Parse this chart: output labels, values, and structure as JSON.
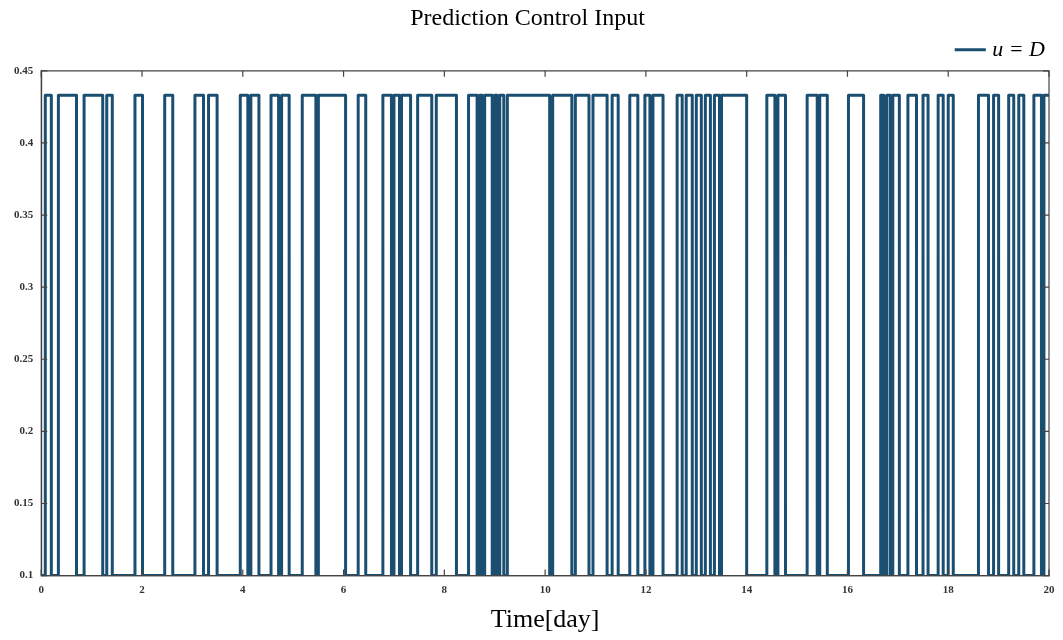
{
  "chart_data": {
    "type": "step",
    "title": "Prediction Control Input",
    "xlabel": "Time[day]",
    "xlim": [
      0,
      20
    ],
    "xticks": [
      0,
      2,
      4,
      6,
      8,
      10,
      12,
      14,
      16,
      18,
      20
    ],
    "ylim": [
      0.1,
      0.45
    ],
    "yticks": [
      0.1,
      0.15,
      0.2,
      0.25,
      0.3,
      0.35,
      0.4,
      0.45
    ],
    "grid": false,
    "legend": "top right",
    "line_style": "solid",
    "marker": "none",
    "series": [
      {
        "name": "u = D",
        "color": "#1b4f72",
        "x": [
          0,
          0.08,
          0.2,
          0.34,
          0.7,
          0.85,
          1.22,
          1.3,
          1.41,
          1.86,
          2.01,
          2.45,
          2.61,
          3.05,
          3.22,
          3.32,
          3.49,
          3.95,
          4.1,
          4.16,
          4.32,
          4.56,
          4.71,
          4.77,
          4.92,
          5.18,
          5.45,
          5.5,
          6.04,
          6.29,
          6.44,
          6.78,
          6.95,
          7.0,
          7.11,
          7.15,
          7.33,
          7.47,
          7.75,
          7.84,
          8.24,
          8.48,
          8.65,
          8.7,
          8.75,
          8.8,
          8.95,
          9.0,
          9.05,
          9.1,
          9.18,
          9.25,
          10.09,
          10.15,
          10.53,
          10.6,
          10.87,
          10.95,
          11.23,
          11.33,
          11.45,
          11.68,
          11.84,
          11.98,
          12.08,
          12.14,
          12.34,
          12.62,
          12.72,
          12.8,
          12.92,
          13.0,
          13.1,
          13.18,
          13.28,
          13.36,
          13.46,
          13.5,
          14.0,
          14.4,
          14.56,
          14.62,
          14.77,
          15.2,
          15.4,
          15.45,
          15.6,
          16.02,
          16.32,
          16.66,
          16.72,
          16.78,
          16.85,
          16.9,
          17.03,
          17.2,
          17.37,
          17.5,
          17.6,
          17.8,
          17.9,
          18.0,
          18.1,
          18.6,
          18.8,
          18.9,
          19.0,
          19.2,
          19.3,
          19.4,
          19.5,
          19.7,
          19.85,
          19.9,
          20
        ],
        "values": [
          0.1,
          0.433,
          0.1,
          0.433,
          0.1,
          0.433,
          0.1,
          0.433,
          0.1,
          0.433,
          0.1,
          0.433,
          0.1,
          0.433,
          0.1,
          0.433,
          0.1,
          0.433,
          0.1,
          0.433,
          0.1,
          0.433,
          0.1,
          0.433,
          0.1,
          0.433,
          0.1,
          0.433,
          0.1,
          0.433,
          0.1,
          0.433,
          0.1,
          0.433,
          0.1,
          0.433,
          0.1,
          0.433,
          0.1,
          0.433,
          0.1,
          0.433,
          0.1,
          0.433,
          0.1,
          0.433,
          0.1,
          0.433,
          0.1,
          0.433,
          0.1,
          0.433,
          0.1,
          0.433,
          0.1,
          0.433,
          0.1,
          0.433,
          0.1,
          0.433,
          0.1,
          0.433,
          0.1,
          0.433,
          0.1,
          0.433,
          0.1,
          0.433,
          0.1,
          0.433,
          0.1,
          0.433,
          0.1,
          0.433,
          0.1,
          0.433,
          0.1,
          0.433,
          0.1,
          0.433,
          0.1,
          0.433,
          0.1,
          0.433,
          0.1,
          0.433,
          0.1,
          0.433,
          0.1,
          0.433,
          0.1,
          0.433,
          0.1,
          0.433,
          0.1,
          0.433,
          0.1,
          0.433,
          0.1,
          0.433,
          0.1,
          0.433,
          0.1,
          0.433,
          0.1,
          0.433,
          0.1,
          0.433,
          0.1,
          0.433,
          0.1,
          0.433,
          0.1,
          0.433,
          0.433
        ]
      }
    ]
  }
}
